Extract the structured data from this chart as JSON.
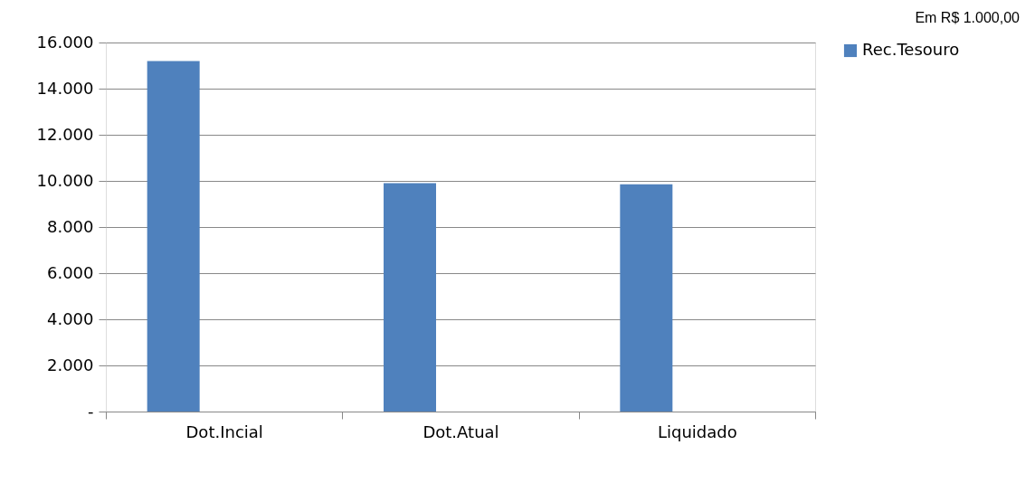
{
  "chart_data": {
    "type": "bar",
    "categories": [
      "Dot.Incial",
      "Dot.Atual",
      "Liquidado"
    ],
    "series": [
      {
        "name": "Rec.Tesouro",
        "color": "#4f81bd",
        "values": [
          15200,
          9900,
          9850
        ]
      }
    ],
    "ylim": [
      0,
      16000
    ],
    "yticks": [
      {
        "value": 0,
        "label": "-"
      },
      {
        "value": 2000,
        "label": "2.000"
      },
      {
        "value": 4000,
        "label": "4.000"
      },
      {
        "value": 6000,
        "label": "6.000"
      },
      {
        "value": 8000,
        "label": "8.000"
      },
      {
        "value": 10000,
        "label": "10.000"
      },
      {
        "value": 12000,
        "label": "12.000"
      },
      {
        "value": 14000,
        "label": "14.000"
      },
      {
        "value": 16000,
        "label": "16.000"
      }
    ],
    "grid": "y",
    "legend": "right",
    "annotations": [
      "Em R$ 1.000,00"
    ]
  }
}
